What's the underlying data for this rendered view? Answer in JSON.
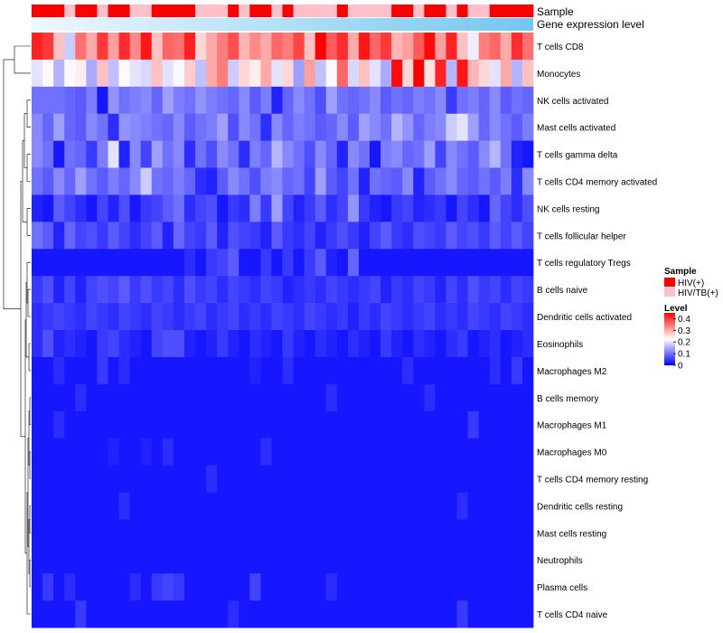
{
  "chart_data": {
    "type": "heatmap",
    "title": "",
    "rows": [
      "T cells CD8",
      "Monocytes",
      "NK cells activated",
      "Mast cells activated",
      "T cells gamma delta",
      "T cells CD4 memory activated",
      "NK cells resting",
      "T cells follicular helper",
      "T cells regulatory  Tregs",
      "B cells naive",
      "Dendritic cells activated",
      "Eosinophils",
      "Macrophages M2",
      "B cells memory",
      "Macrophages M1",
      "Macrophages M0",
      "T cells CD4 memory resting",
      "Dendritic cells resting",
      "Mast cells resting",
      "Neutrophils",
      "Plasma cells",
      "T cells CD4 naive"
    ],
    "n_columns": 46,
    "annotations": [
      {
        "name": "Sample",
        "groups": [
          "HIV(+)",
          "HIV/TB(+)"
        ],
        "colors": [
          "#ff0000",
          "#ffc0cb"
        ],
        "column_groups": [
          0,
          0,
          0,
          1,
          0,
          0,
          1,
          0,
          0,
          1,
          1,
          0,
          0,
          0,
          0,
          1,
          1,
          1,
          0,
          1,
          0,
          0,
          1,
          0,
          1,
          1,
          1,
          1,
          0,
          1,
          1,
          1,
          1,
          0,
          0,
          1,
          0,
          0,
          1,
          0,
          1,
          1,
          0,
          0,
          0,
          0
        ]
      },
      {
        "name": "Gene expression level",
        "start_color": "#f0f8ff",
        "end_color": "#74c6f0"
      }
    ],
    "legend": {
      "title": "Level",
      "ticks": [
        "0.4",
        "0.3",
        "0.2",
        "0.1",
        "0"
      ],
      "tick_values": [
        0.4,
        0.3,
        0.2,
        0.1,
        0
      ],
      "min": 0,
      "max": 0.45,
      "low_color": "#0000ff",
      "mid_color": "#ffffff",
      "high_color": "#ff0000",
      "midpoint": 0.225
    },
    "values": [
      [
        0.42,
        0.4,
        0.28,
        0.18,
        0.35,
        0.3,
        0.4,
        0.31,
        0.41,
        0.33,
        0.43,
        0.28,
        0.36,
        0.35,
        0.42,
        0.26,
        0.3,
        0.34,
        0.38,
        0.29,
        0.33,
        0.3,
        0.36,
        0.34,
        0.39,
        0.28,
        0.45,
        0.37,
        0.41,
        0.3,
        0.43,
        0.36,
        0.4,
        0.29,
        0.31,
        0.37,
        0.44,
        0.31,
        0.42,
        0.28,
        0.21,
        0.34,
        0.36,
        0.3,
        0.41,
        0.35
      ],
      [
        0.2,
        0.23,
        0.16,
        0.22,
        0.24,
        0.15,
        0.28,
        0.17,
        0.23,
        0.2,
        0.19,
        0.28,
        0.2,
        0.22,
        0.27,
        0.17,
        0.3,
        0.34,
        0.18,
        0.26,
        0.24,
        0.3,
        0.2,
        0.26,
        0.14,
        0.31,
        0.17,
        0.22,
        0.36,
        0.19,
        0.28,
        0.2,
        0.15,
        0.44,
        0.26,
        0.45,
        0.25,
        0.42,
        0.16,
        0.43,
        0.29,
        0.26,
        0.2,
        0.3,
        0.16,
        0.28
      ],
      [
        0.1,
        0.1,
        0.1,
        0.09,
        0.08,
        0.11,
        0.02,
        0.13,
        0.1,
        0.11,
        0.12,
        0.09,
        0.14,
        0.11,
        0.1,
        0.13,
        0.11,
        0.1,
        0.09,
        0.12,
        0.08,
        0.11,
        0.03,
        0.09,
        0.12,
        0.1,
        0.07,
        0.14,
        0.1,
        0.09,
        0.1,
        0.12,
        0.08,
        0.1,
        0.09,
        0.11,
        0.1,
        0.12,
        0.05,
        0.1,
        0.11,
        0.09,
        0.12,
        0.08,
        0.1,
        0.09
      ],
      [
        0.12,
        0.09,
        0.14,
        0.09,
        0.08,
        0.12,
        0.1,
        0.04,
        0.13,
        0.12,
        0.11,
        0.1,
        0.09,
        0.12,
        0.08,
        0.1,
        0.11,
        0.14,
        0.07,
        0.12,
        0.1,
        0.04,
        0.12,
        0.09,
        0.11,
        0.1,
        0.08,
        0.09,
        0.12,
        0.08,
        0.14,
        0.12,
        0.1,
        0.16,
        0.13,
        0.09,
        0.11,
        0.12,
        0.18,
        0.2,
        0.14,
        0.09,
        0.12,
        0.1,
        0.08,
        0.11
      ],
      [
        0.12,
        0.1,
        0.02,
        0.1,
        0.09,
        0.05,
        0.11,
        0.2,
        0.03,
        0.12,
        0.06,
        0.14,
        0.1,
        0.12,
        0.04,
        0.1,
        0.07,
        0.12,
        0.1,
        0.04,
        0.11,
        0.09,
        0.16,
        0.12,
        0.1,
        0.07,
        0.12,
        0.09,
        0.03,
        0.12,
        0.1,
        0.02,
        0.11,
        0.12,
        0.09,
        0.1,
        0.14,
        0.06,
        0.12,
        0.1,
        0.08,
        0.12,
        0.16,
        0.1,
        0.03,
        0.02
      ],
      [
        0.1,
        0.08,
        0.12,
        0.09,
        0.14,
        0.1,
        0.08,
        0.11,
        0.09,
        0.12,
        0.18,
        0.1,
        0.09,
        0.11,
        0.09,
        0.04,
        0.03,
        0.08,
        0.12,
        0.1,
        0.07,
        0.11,
        0.12,
        0.09,
        0.1,
        0.06,
        0.14,
        0.08,
        0.06,
        0.1,
        0.03,
        0.1,
        0.09,
        0.08,
        0.12,
        0.03,
        0.08,
        0.1,
        0.12,
        0.09,
        0.08,
        0.1,
        0.08,
        0.11,
        0.04,
        0.12
      ],
      [
        0.03,
        0.02,
        0.08,
        0.06,
        0.04,
        0.02,
        0.06,
        0.03,
        0.07,
        0.02,
        0.05,
        0.06,
        0.08,
        0.1,
        0.04,
        0.06,
        0.07,
        0.02,
        0.05,
        0.04,
        0.11,
        0.05,
        0.14,
        0.06,
        0.03,
        0.05,
        0.08,
        0.04,
        0.06,
        0.13,
        0.05,
        0.03,
        0.02,
        0.05,
        0.06,
        0.03,
        0.04,
        0.05,
        0.02,
        0.06,
        0.04,
        0.02,
        0.09,
        0.06,
        0.04,
        0.07
      ],
      [
        0.1,
        0.08,
        0.03,
        0.09,
        0.06,
        0.07,
        0.05,
        0.08,
        0.06,
        0.04,
        0.06,
        0.08,
        0.03,
        0.09,
        0.06,
        0.05,
        0.08,
        0.03,
        0.07,
        0.06,
        0.05,
        0.03,
        0.08,
        0.05,
        0.04,
        0.06,
        0.03,
        0.05,
        0.07,
        0.05,
        0.03,
        0.06,
        0.08,
        0.05,
        0.04,
        0.07,
        0.06,
        0.05,
        0.08,
        0.06,
        0.07,
        0.05,
        0.08,
        0.06,
        0.08,
        0.06
      ],
      [
        0.02,
        0.02,
        0.02,
        0.02,
        0.02,
        0.02,
        0.02,
        0.02,
        0.02,
        0.02,
        0.02,
        0.02,
        0.02,
        0.02,
        0.04,
        0.02,
        0.05,
        0.06,
        0.08,
        0.02,
        0.02,
        0.05,
        0.02,
        0.05,
        0.02,
        0.05,
        0.08,
        0.03,
        0.02,
        0.09,
        0.02,
        0.02,
        0.02,
        0.02,
        0.02,
        0.02,
        0.02,
        0.02,
        0.02,
        0.02,
        0.02,
        0.02,
        0.02,
        0.02,
        0.02,
        0.02
      ],
      [
        0.05,
        0.07,
        0.03,
        0.06,
        0.03,
        0.06,
        0.07,
        0.06,
        0.08,
        0.05,
        0.07,
        0.05,
        0.06,
        0.04,
        0.07,
        0.05,
        0.06,
        0.04,
        0.06,
        0.05,
        0.04,
        0.06,
        0.05,
        0.03,
        0.04,
        0.05,
        0.04,
        0.06,
        0.05,
        0.04,
        0.05,
        0.06,
        0.03,
        0.05,
        0.04,
        0.06,
        0.05,
        0.03,
        0.06,
        0.04,
        0.07,
        0.05,
        0.06,
        0.04,
        0.06,
        0.05
      ],
      [
        0.04,
        0.05,
        0.06,
        0.05,
        0.04,
        0.06,
        0.05,
        0.04,
        0.06,
        0.05,
        0.04,
        0.06,
        0.05,
        0.04,
        0.05,
        0.06,
        0.04,
        0.05,
        0.06,
        0.04,
        0.05,
        0.04,
        0.06,
        0.05,
        0.04,
        0.06,
        0.05,
        0.04,
        0.05,
        0.03,
        0.05,
        0.04,
        0.06,
        0.05,
        0.04,
        0.05,
        0.06,
        0.04,
        0.05,
        0.04,
        0.06,
        0.05,
        0.04,
        0.06,
        0.05,
        0.04
      ],
      [
        0.04,
        0.07,
        0.03,
        0.04,
        0.03,
        0.02,
        0.05,
        0.06,
        0.04,
        0.03,
        0.02,
        0.06,
        0.07,
        0.07,
        0.03,
        0.02,
        0.03,
        0.05,
        0.03,
        0.02,
        0.04,
        0.03,
        0.02,
        0.05,
        0.03,
        0.02,
        0.04,
        0.03,
        0.02,
        0.04,
        0.03,
        0.02,
        0.05,
        0.03,
        0.02,
        0.04,
        0.03,
        0.02,
        0.04,
        0.05,
        0.02,
        0.03,
        0.04,
        0.02,
        0.03,
        0.04
      ],
      [
        0.02,
        0.02,
        0.04,
        0.02,
        0.02,
        0.02,
        0.05,
        0.02,
        0.04,
        0.02,
        0.02,
        0.02,
        0.02,
        0.02,
        0.02,
        0.02,
        0.02,
        0.02,
        0.02,
        0.02,
        0.03,
        0.02,
        0.02,
        0.04,
        0.02,
        0.02,
        0.02,
        0.02,
        0.02,
        0.02,
        0.02,
        0.02,
        0.02,
        0.02,
        0.04,
        0.02,
        0.02,
        0.02,
        0.02,
        0.02,
        0.02,
        0.02,
        0.04,
        0.02,
        0.05,
        0.02
      ],
      [
        0.02,
        0.02,
        0.02,
        0.02,
        0.04,
        0.02,
        0.02,
        0.02,
        0.02,
        0.02,
        0.02,
        0.02,
        0.02,
        0.02,
        0.02,
        0.02,
        0.02,
        0.02,
        0.02,
        0.02,
        0.02,
        0.02,
        0.02,
        0.02,
        0.02,
        0.02,
        0.02,
        0.04,
        0.02,
        0.02,
        0.02,
        0.02,
        0.02,
        0.02,
        0.02,
        0.02,
        0.04,
        0.02,
        0.02,
        0.02,
        0.02,
        0.02,
        0.02,
        0.02,
        0.02,
        0.02
      ],
      [
        0.02,
        0.02,
        0.04,
        0.02,
        0.02,
        0.02,
        0.02,
        0.02,
        0.02,
        0.02,
        0.02,
        0.02,
        0.02,
        0.02,
        0.02,
        0.02,
        0.02,
        0.02,
        0.02,
        0.02,
        0.02,
        0.02,
        0.02,
        0.02,
        0.02,
        0.02,
        0.02,
        0.02,
        0.02,
        0.02,
        0.02,
        0.02,
        0.02,
        0.02,
        0.02,
        0.02,
        0.02,
        0.02,
        0.02,
        0.02,
        0.05,
        0.02,
        0.02,
        0.02,
        0.02,
        0.02
      ],
      [
        0.02,
        0.02,
        0.02,
        0.02,
        0.02,
        0.02,
        0.02,
        0.03,
        0.02,
        0.02,
        0.03,
        0.02,
        0.04,
        0.02,
        0.02,
        0.02,
        0.02,
        0.02,
        0.02,
        0.02,
        0.02,
        0.04,
        0.02,
        0.02,
        0.02,
        0.02,
        0.02,
        0.02,
        0.02,
        0.02,
        0.02,
        0.02,
        0.02,
        0.02,
        0.02,
        0.02,
        0.02,
        0.02,
        0.02,
        0.02,
        0.02,
        0.02,
        0.02,
        0.02,
        0.02,
        0.02
      ],
      [
        0.02,
        0.02,
        0.02,
        0.02,
        0.02,
        0.02,
        0.02,
        0.02,
        0.02,
        0.02,
        0.02,
        0.02,
        0.02,
        0.02,
        0.02,
        0.02,
        0.04,
        0.02,
        0.02,
        0.02,
        0.02,
        0.02,
        0.02,
        0.02,
        0.02,
        0.02,
        0.02,
        0.02,
        0.02,
        0.02,
        0.02,
        0.02,
        0.02,
        0.02,
        0.02,
        0.02,
        0.02,
        0.02,
        0.02,
        0.02,
        0.02,
        0.02,
        0.02,
        0.02,
        0.02,
        0.02
      ],
      [
        0.02,
        0.02,
        0.02,
        0.02,
        0.02,
        0.02,
        0.02,
        0.02,
        0.04,
        0.02,
        0.02,
        0.02,
        0.02,
        0.02,
        0.02,
        0.02,
        0.02,
        0.02,
        0.02,
        0.02,
        0.02,
        0.02,
        0.02,
        0.02,
        0.02,
        0.02,
        0.02,
        0.02,
        0.02,
        0.02,
        0.02,
        0.02,
        0.02,
        0.02,
        0.02,
        0.02,
        0.02,
        0.02,
        0.02,
        0.04,
        0.02,
        0.02,
        0.02,
        0.02,
        0.02,
        0.02
      ],
      [
        0.02,
        0.02,
        0.02,
        0.02,
        0.02,
        0.02,
        0.02,
        0.02,
        0.02,
        0.02,
        0.02,
        0.02,
        0.02,
        0.02,
        0.02,
        0.02,
        0.02,
        0.02,
        0.02,
        0.02,
        0.02,
        0.02,
        0.02,
        0.02,
        0.02,
        0.02,
        0.02,
        0.02,
        0.02,
        0.02,
        0.02,
        0.02,
        0.02,
        0.02,
        0.02,
        0.02,
        0.02,
        0.02,
        0.02,
        0.02,
        0.02,
        0.02,
        0.02,
        0.02,
        0.02,
        0.02
      ],
      [
        0.02,
        0.02,
        0.02,
        0.02,
        0.02,
        0.02,
        0.02,
        0.02,
        0.02,
        0.02,
        0.02,
        0.02,
        0.02,
        0.02,
        0.02,
        0.02,
        0.02,
        0.02,
        0.02,
        0.02,
        0.02,
        0.02,
        0.02,
        0.02,
        0.02,
        0.02,
        0.02,
        0.02,
        0.02,
        0.02,
        0.02,
        0.02,
        0.02,
        0.02,
        0.02,
        0.02,
        0.02,
        0.02,
        0.02,
        0.02,
        0.02,
        0.02,
        0.02,
        0.02,
        0.02,
        0.02
      ],
      [
        0.02,
        0.05,
        0.02,
        0.04,
        0.02,
        0.02,
        0.02,
        0.02,
        0.02,
        0.04,
        0.02,
        0.05,
        0.06,
        0.05,
        0.02,
        0.02,
        0.02,
        0.02,
        0.02,
        0.02,
        0.06,
        0.02,
        0.02,
        0.02,
        0.02,
        0.02,
        0.02,
        0.04,
        0.02,
        0.02,
        0.02,
        0.02,
        0.02,
        0.02,
        0.02,
        0.02,
        0.02,
        0.02,
        0.02,
        0.02,
        0.02,
        0.02,
        0.02,
        0.02,
        0.02,
        0.02
      ],
      [
        0.02,
        0.02,
        0.02,
        0.02,
        0.05,
        0.02,
        0.02,
        0.02,
        0.02,
        0.02,
        0.02,
        0.02,
        0.02,
        0.02,
        0.02,
        0.02,
        0.02,
        0.02,
        0.04,
        0.02,
        0.02,
        0.02,
        0.02,
        0.02,
        0.02,
        0.02,
        0.02,
        0.02,
        0.02,
        0.02,
        0.02,
        0.02,
        0.02,
        0.02,
        0.02,
        0.02,
        0.02,
        0.02,
        0.02,
        0.05,
        0.02,
        0.02,
        0.02,
        0.02,
        0.02,
        0.02
      ]
    ]
  }
}
